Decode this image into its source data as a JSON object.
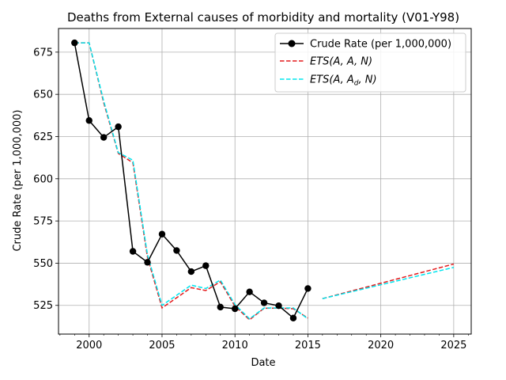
{
  "chart_data": {
    "type": "line",
    "title": "Deaths from External causes of morbidity and mortality (V01-Y98)",
    "xlabel": "Date",
    "ylabel": "Crude Rate (per 1,000,000)",
    "xlim": [
      1997.9,
      2026.2
    ],
    "ylim": [
      508,
      689
    ],
    "xticks": [
      2000,
      2005,
      2010,
      2015,
      2020,
      2025
    ],
    "xtick_labels": [
      "2000",
      "2005",
      "2010",
      "2015",
      "2020",
      "2025"
    ],
    "yticks": [
      525,
      550,
      575,
      600,
      625,
      650,
      675
    ],
    "ytick_labels": [
      "525",
      "550",
      "575",
      "600",
      "625",
      "650",
      "675"
    ],
    "grid": true,
    "legend_position": "top-right",
    "series": [
      {
        "name": "Crude Rate (per 1,000,000)",
        "color": "#000000",
        "style": "solid-marker",
        "x": [
          1999,
          2000,
          2001,
          2002,
          2003,
          2004,
          2005,
          2006,
          2007,
          2008,
          2009,
          2010,
          2011,
          2012,
          2013,
          2014,
          2015
        ],
        "y": [
          680.5,
          634.5,
          624.5,
          630.8,
          557.0,
          550.5,
          567.2,
          557.5,
          545.0,
          548.5,
          524.0,
          523.0,
          533.0,
          526.5,
          524.8,
          517.5,
          535.0
        ]
      },
      {
        "name": "ETS(A, A, N)",
        "legend_main": "ETS",
        "legend_args": "(A, A, N)",
        "color": "#e41a1c",
        "style": "dashed",
        "segments": [
          {
            "x": [
              1999,
              2000,
              2001,
              2002,
              2003,
              2004,
              2005,
              2006,
              2007,
              2008,
              2009,
              2010,
              2011,
              2012,
              2013,
              2014,
              2015
            ],
            "y": [
              680.5,
              680.5,
              645.0,
              615.0,
              609.5,
              553.5,
              523.5,
              529.5,
              535.5,
              533.8,
              539.0,
              524.5,
              516.5,
              523.3,
              523.4,
              523.0,
              517.5
            ]
          },
          {
            "x": [
              2016,
              2025
            ],
            "y": [
              529.0,
              549.5
            ]
          }
        ]
      },
      {
        "name": "ETS(A, Ad, N)",
        "legend_main": "ETS",
        "legend_args": "(A, A",
        "legend_sub": "d",
        "legend_args_end": ", N)",
        "color": "#00e5ee",
        "style": "dashed",
        "segments": [
          {
            "x": [
              1999,
              2000,
              2001,
              2002,
              2003,
              2004,
              2005,
              2006,
              2007,
              2008,
              2009,
              2010,
              2011,
              2012,
              2013,
              2014,
              2015
            ],
            "y": [
              680.5,
              680.5,
              646.0,
              615.5,
              611.0,
              555.0,
              525.0,
              531.0,
              537.0,
              535.0,
              540.0,
              525.5,
              517.0,
              523.5,
              523.5,
              523.5,
              517.0
            ]
          },
          {
            "x": [
              2016,
              2025
            ],
            "y": [
              529.0,
              547.5
            ]
          }
        ]
      }
    ]
  }
}
